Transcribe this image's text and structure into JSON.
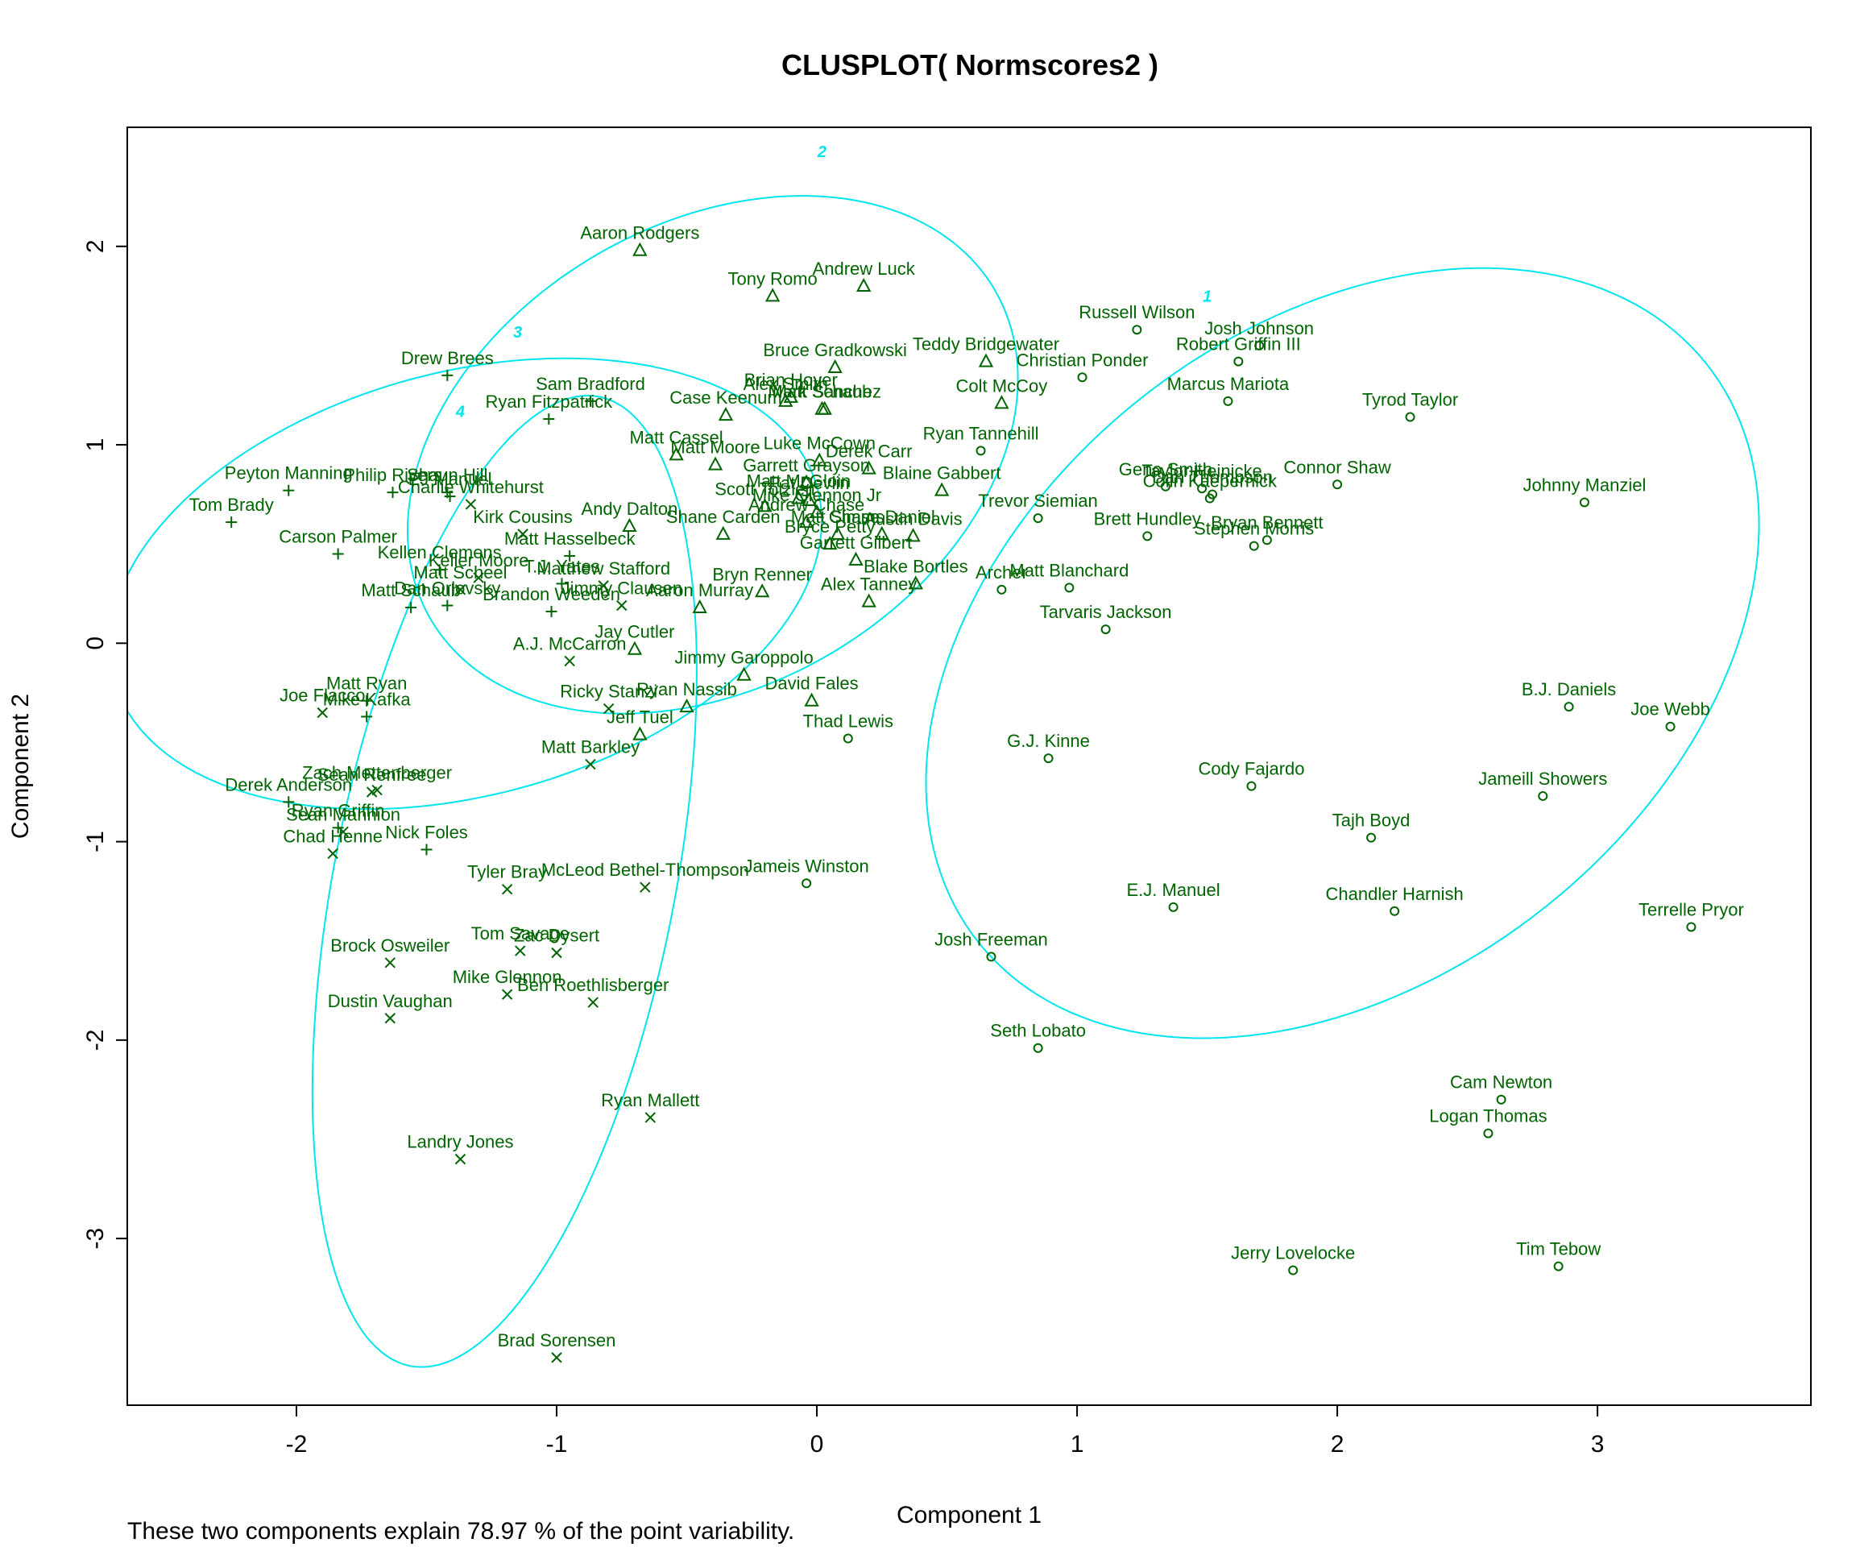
{
  "chart_data": {
    "type": "scatter",
    "title": "CLUSPLOT( Normscores2 )",
    "xlabel": "Component 1",
    "ylabel": "Component 2",
    "footnote": "These two components explain 78.97 % of the point variability.",
    "xlim": [
      -2.65,
      3.82
    ],
    "ylim": [
      -3.84,
      2.6
    ],
    "xticks": [
      -2,
      -1,
      0,
      1,
      2,
      3
    ],
    "yticks": [
      -3,
      -2,
      -1,
      0,
      1,
      2
    ],
    "xtick_labels": [
      "-2",
      "-1",
      "0",
      "1",
      "2",
      "3"
    ],
    "ytick_labels": [
      "-3",
      "-2",
      "-1",
      "0",
      "1",
      "2"
    ],
    "colors": {
      "points": "#006400",
      "ellipses": "#00e5ee",
      "axes": "#000000"
    },
    "clusters": [
      {
        "id": 1,
        "label": "1",
        "marker": "circle",
        "label_x": 1.5,
        "label_y": 1.72,
        "ellipse": {
          "cx": 2.02,
          "cy": -0.05,
          "rx": 2.09,
          "ry": 1.4,
          "angle": 60
        }
      },
      {
        "id": 2,
        "label": "2",
        "marker": "triangle",
        "label_x": 0.02,
        "label_y": 2.45,
        "ellipse": {
          "cx": -0.4,
          "cy": 0.95,
          "rx": 1.42,
          "ry": 1.03,
          "angle": 55
        }
      },
      {
        "id": 3,
        "label": "3",
        "marker": "plus",
        "label_x": -1.15,
        "label_y": 1.54,
        "ellipse": {
          "cx": -1.35,
          "cy": 0.3,
          "rx": 1.45,
          "ry": 1.03,
          "angle": 28
        }
      },
      {
        "id": 4,
        "label": "4",
        "marker": "cross",
        "label_x": -1.37,
        "label_y": 1.14,
        "ellipse": {
          "cx": -1.2,
          "cy": -1.2,
          "rx": 2.47,
          "ry": 0.66,
          "angle": 82
        }
      }
    ],
    "points": [
      {
        "name": "Aaron Rodgers",
        "x": -0.68,
        "y": 1.98,
        "cluster": 2
      },
      {
        "name": "Tony Romo",
        "x": -0.17,
        "y": 1.75,
        "cluster": 2
      },
      {
        "name": "Andrew Luck",
        "x": 0.18,
        "y": 1.8,
        "cluster": 2
      },
      {
        "name": "Bruce Gradkowski",
        "x": 0.07,
        "y": 1.39,
        "cluster": 2
      },
      {
        "name": "Brian Hoyer",
        "x": -0.1,
        "y": 1.24,
        "cluster": 2
      },
      {
        "name": "Alex Smith",
        "x": -0.12,
        "y": 1.22,
        "cluster": 2
      },
      {
        "name": "Matt Schaub",
        "x": 0.02,
        "y": 1.18,
        "cluster": 2
      },
      {
        "name": "Mark Sanchez",
        "x": 0.03,
        "y": 1.18,
        "cluster": 2
      },
      {
        "name": "Case Keenum",
        "x": -0.35,
        "y": 1.15,
        "cluster": 2
      },
      {
        "name": "Teddy Bridgewater",
        "x": 0.65,
        "y": 1.42,
        "cluster": 2
      },
      {
        "name": "Colt McCoy",
        "x": 0.71,
        "y": 1.21,
        "cluster": 2
      },
      {
        "name": "Matt Cassel",
        "x": -0.54,
        "y": 0.95,
        "cluster": 2
      },
      {
        "name": "Matt Moore",
        "x": -0.39,
        "y": 0.9,
        "cluster": 2
      },
      {
        "name": "Luke McCown",
        "x": 0.01,
        "y": 0.92,
        "cluster": 2
      },
      {
        "name": "Derek Carr",
        "x": 0.2,
        "y": 0.88,
        "cluster": 2
      },
      {
        "name": "Garrett Grayson",
        "x": -0.04,
        "y": 0.81,
        "cluster": 2
      },
      {
        "name": "Blaine Gabbert",
        "x": 0.48,
        "y": 0.77,
        "cluster": 2
      },
      {
        "name": "Matt McGloin",
        "x": -0.07,
        "y": 0.73,
        "cluster": 2
      },
      {
        "name": "Pat Devlin",
        "x": -0.03,
        "y": 0.72,
        "cluster": 2
      },
      {
        "name": "Andy Dalton",
        "x": -0.72,
        "y": 0.59,
        "cluster": 2
      },
      {
        "name": "Scott Tolzien",
        "x": -0.2,
        "y": 0.69,
        "cluster": 2
      },
      {
        "name": "Mike Glennon Jr",
        "x": 0.0,
        "y": 0.66,
        "cluster": 2
      },
      {
        "name": "Shane Carden",
        "x": -0.36,
        "y": 0.55,
        "cluster": 2
      },
      {
        "name": "Andrew Chase",
        "x": -0.04,
        "y": 0.61,
        "cluster": 2
      },
      {
        "name": "Chase Daniel",
        "x": 0.25,
        "y": 0.55,
        "cluster": 2
      },
      {
        "name": "Austin Davis",
        "x": 0.37,
        "y": 0.54,
        "cluster": 2
      },
      {
        "name": "Matt Simms",
        "x": 0.08,
        "y": 0.55,
        "cluster": 2
      },
      {
        "name": "Bryce Petty",
        "x": 0.05,
        "y": 0.5,
        "cluster": 2
      },
      {
        "name": "Bryn Renner",
        "x": -0.21,
        "y": 0.26,
        "cluster": 2
      },
      {
        "name": "Garrett Gilbert",
        "x": 0.15,
        "y": 0.42,
        "cluster": 2
      },
      {
        "name": "Alex Tanney",
        "x": 0.2,
        "y": 0.21,
        "cluster": 2
      },
      {
        "name": "Blake Bortles",
        "x": 0.38,
        "y": 0.3,
        "cluster": 2
      },
      {
        "name": "Aaron Murray",
        "x": -0.45,
        "y": 0.18,
        "cluster": 2
      },
      {
        "name": "Jay Cutler",
        "x": -0.7,
        "y": -0.03,
        "cluster": 2
      },
      {
        "name": "Jimmy Garoppolo",
        "x": -0.28,
        "y": -0.16,
        "cluster": 2
      },
      {
        "name": "Ryan Nassib",
        "x": -0.5,
        "y": -0.32,
        "cluster": 2
      },
      {
        "name": "David Fales",
        "x": -0.02,
        "y": -0.29,
        "cluster": 2
      },
      {
        "name": "Jeff Tuel",
        "x": -0.68,
        "y": -0.46,
        "cluster": 2
      },
      {
        "name": "Russell Wilson",
        "x": 1.23,
        "y": 1.58,
        "cluster": 1
      },
      {
        "name": "Josh Johnson",
        "x": 1.7,
        "y": 1.5,
        "cluster": 1
      },
      {
        "name": "Robert Griffin III",
        "x": 1.62,
        "y": 1.42,
        "cluster": 1
      },
      {
        "name": "Christian Ponder",
        "x": 1.02,
        "y": 1.34,
        "cluster": 1
      },
      {
        "name": "Marcus Mariota",
        "x": 1.58,
        "y": 1.22,
        "cluster": 1
      },
      {
        "name": "Tyrod Taylor",
        "x": 2.28,
        "y": 1.14,
        "cluster": 1
      },
      {
        "name": "Ryan Tannehill",
        "x": 0.63,
        "y": 0.97,
        "cluster": 1
      },
      {
        "name": "Taylor Heinicke",
        "x": 1.48,
        "y": 0.78,
        "cluster": 1
      },
      {
        "name": "Geno Smith",
        "x": 1.34,
        "y": 0.79,
        "cluster": 1
      },
      {
        "name": "Dan Thompson",
        "x": 1.52,
        "y": 0.75,
        "cluster": 1
      },
      {
        "name": "Colin Kaepernick",
        "x": 1.51,
        "y": 0.73,
        "cluster": 1
      },
      {
        "name": "Connor Shaw",
        "x": 2.0,
        "y": 0.8,
        "cluster": 1
      },
      {
        "name": "Johnny Manziel",
        "x": 2.95,
        "y": 0.71,
        "cluster": 1
      },
      {
        "name": "Trevor Siemian",
        "x": 0.85,
        "y": 0.63,
        "cluster": 1
      },
      {
        "name": "Brett Hundley",
        "x": 1.27,
        "y": 0.54,
        "cluster": 1
      },
      {
        "name": "Bryan Bennett",
        "x": 1.73,
        "y": 0.52,
        "cluster": 1
      },
      {
        "name": "Stephen Morris",
        "x": 1.68,
        "y": 0.49,
        "cluster": 1
      },
      {
        "name": "Matt Blanchard",
        "x": 0.97,
        "y": 0.28,
        "cluster": 1
      },
      {
        "name": "Archer",
        "x": 0.71,
        "y": 0.27,
        "cluster": 1
      },
      {
        "name": "Tarvaris Jackson",
        "x": 1.11,
        "y": 0.07,
        "cluster": 1
      },
      {
        "name": "B.J. Daniels",
        "x": 2.89,
        "y": -0.32,
        "cluster": 1
      },
      {
        "name": "Joe Webb",
        "x": 3.28,
        "y": -0.42,
        "cluster": 1
      },
      {
        "name": "Thad Lewis",
        "x": 0.12,
        "y": -0.48,
        "cluster": 1
      },
      {
        "name": "G.J. Kinne",
        "x": 0.89,
        "y": -0.58,
        "cluster": 1
      },
      {
        "name": "Cody Fajardo",
        "x": 1.67,
        "y": -0.72,
        "cluster": 1
      },
      {
        "name": "Jameill Showers",
        "x": 2.79,
        "y": -0.77,
        "cluster": 1
      },
      {
        "name": "Tajh Boyd",
        "x": 2.13,
        "y": -0.98,
        "cluster": 1
      },
      {
        "name": "Jameis Winston",
        "x": -0.04,
        "y": -1.21,
        "cluster": 1
      },
      {
        "name": "E.J. Manuel",
        "x": 1.37,
        "y": -1.33,
        "cluster": 1
      },
      {
        "name": "Chandler Harnish",
        "x": 2.22,
        "y": -1.35,
        "cluster": 1
      },
      {
        "name": "Terrelle Pryor",
        "x": 3.36,
        "y": -1.43,
        "cluster": 1
      },
      {
        "name": "Josh Freeman",
        "x": 0.67,
        "y": -1.58,
        "cluster": 1
      },
      {
        "name": "Seth Lobato",
        "x": 0.85,
        "y": -2.04,
        "cluster": 1
      },
      {
        "name": "Cam Newton",
        "x": 2.63,
        "y": -2.3,
        "cluster": 1
      },
      {
        "name": "Logan Thomas",
        "x": 2.58,
        "y": -2.47,
        "cluster": 1
      },
      {
        "name": "Jerry Lovelocke",
        "x": 1.83,
        "y": -3.16,
        "cluster": 1
      },
      {
        "name": "Tim Tebow",
        "x": 2.85,
        "y": -3.14,
        "cluster": 1
      },
      {
        "name": "Drew Brees",
        "x": -1.42,
        "y": 1.35,
        "cluster": 3
      },
      {
        "name": "Sam Bradford",
        "x": -0.87,
        "y": 1.22,
        "cluster": 3
      },
      {
        "name": "Ryan Fitzpatrick",
        "x": -1.03,
        "y": 1.13,
        "cluster": 3
      },
      {
        "name": "Peyton Manning",
        "x": -2.03,
        "y": 0.77,
        "cluster": 3
      },
      {
        "name": "Philip Rivers",
        "x": -1.63,
        "y": 0.76,
        "cluster": 3
      },
      {
        "name": "Shaun Hill",
        "x": -1.42,
        "y": 0.76,
        "cluster": 3
      },
      {
        "name": "EJ Manuel",
        "x": -1.41,
        "y": 0.74,
        "cluster": 3
      },
      {
        "name": "Tom Brady",
        "x": -2.25,
        "y": 0.61,
        "cluster": 3
      },
      {
        "name": "Carson Palmer",
        "x": -1.84,
        "y": 0.45,
        "cluster": 3
      },
      {
        "name": "Matt Hasselbeck",
        "x": -0.95,
        "y": 0.44,
        "cluster": 3
      },
      {
        "name": "Kellen Clemens",
        "x": -1.45,
        "y": 0.37,
        "cluster": 3
      },
      {
        "name": "T.J. Yates",
        "x": -0.98,
        "y": 0.3,
        "cluster": 3
      },
      {
        "name": "Matt Schaub",
        "x": -1.56,
        "y": 0.18,
        "cluster": 3
      },
      {
        "name": "Dan Orlovsky",
        "x": -1.42,
        "y": 0.19,
        "cluster": 3
      },
      {
        "name": "Brandon Weeden",
        "x": -1.02,
        "y": 0.16,
        "cluster": 3
      },
      {
        "name": "Matt Ryan",
        "x": -1.73,
        "y": -0.29,
        "cluster": 3
      },
      {
        "name": "Mike Kafka",
        "x": -1.73,
        "y": -0.37,
        "cluster": 3
      },
      {
        "name": "Derek Anderson",
        "x": -2.03,
        "y": -0.8,
        "cluster": 3
      },
      {
        "name": "Ryan Griffin",
        "x": -1.84,
        "y": -0.93,
        "cluster": 3
      },
      {
        "name": "Nick Foles",
        "x": -1.5,
        "y": -1.04,
        "cluster": 3
      },
      {
        "name": "Charlie Whitehurst",
        "x": -1.33,
        "y": 0.7,
        "cluster": 4
      },
      {
        "name": "Kirk Cousins",
        "x": -1.13,
        "y": 0.55,
        "cluster": 4
      },
      {
        "name": "Keller Moore",
        "x": -1.3,
        "y": 0.33,
        "cluster": 4
      },
      {
        "name": "Matthew Stafford",
        "x": -0.82,
        "y": 0.29,
        "cluster": 4
      },
      {
        "name": "Jimmy Clausen",
        "x": -0.75,
        "y": 0.19,
        "cluster": 4
      },
      {
        "name": "Matt Scheel",
        "x": -1.37,
        "y": 0.27,
        "cluster": 4
      },
      {
        "name": "A.J. McCarron",
        "x": -0.95,
        "y": -0.09,
        "cluster": 4
      },
      {
        "name": "Ricky Stanzi",
        "x": -0.8,
        "y": -0.33,
        "cluster": 4
      },
      {
        "name": "Joe Flacco",
        "x": -1.9,
        "y": -0.35,
        "cluster": 4
      },
      {
        "name": "Zach Mettenberger",
        "x": -1.69,
        "y": -0.74,
        "cluster": 4
      },
      {
        "name": "Sean Renfree",
        "x": -1.71,
        "y": -0.75,
        "cluster": 4
      },
      {
        "name": "Sean Mannion",
        "x": -1.82,
        "y": -0.95,
        "cluster": 4
      },
      {
        "name": "Chad Henne",
        "x": -1.86,
        "y": -1.06,
        "cluster": 4
      },
      {
        "name": "Matt Barkley",
        "x": -0.87,
        "y": -0.61,
        "cluster": 4
      },
      {
        "name": "Tyler Bray",
        "x": -1.19,
        "y": -1.24,
        "cluster": 4
      },
      {
        "name": "McLeod Bethel-Thompson",
        "x": -0.66,
        "y": -1.23,
        "cluster": 4
      },
      {
        "name": "Tom Savage",
        "x": -1.14,
        "y": -1.55,
        "cluster": 4
      },
      {
        "name": "Zac Dysert",
        "x": -1.0,
        "y": -1.56,
        "cluster": 4
      },
      {
        "name": "Brock Osweiler",
        "x": -1.64,
        "y": -1.61,
        "cluster": 4
      },
      {
        "name": "Mike Glennon",
        "x": -1.19,
        "y": -1.77,
        "cluster": 4
      },
      {
        "name": "Ben Roethlisberger",
        "x": -0.86,
        "y": -1.81,
        "cluster": 4
      },
      {
        "name": "Dustin Vaughan",
        "x": -1.64,
        "y": -1.89,
        "cluster": 4
      },
      {
        "name": "Ryan Mallett",
        "x": -0.64,
        "y": -2.39,
        "cluster": 4
      },
      {
        "name": "Landry Jones",
        "x": -1.37,
        "y": -2.6,
        "cluster": 4
      },
      {
        "name": "Brad Sorensen",
        "x": -1.0,
        "y": -3.6,
        "cluster": 4
      }
    ]
  }
}
